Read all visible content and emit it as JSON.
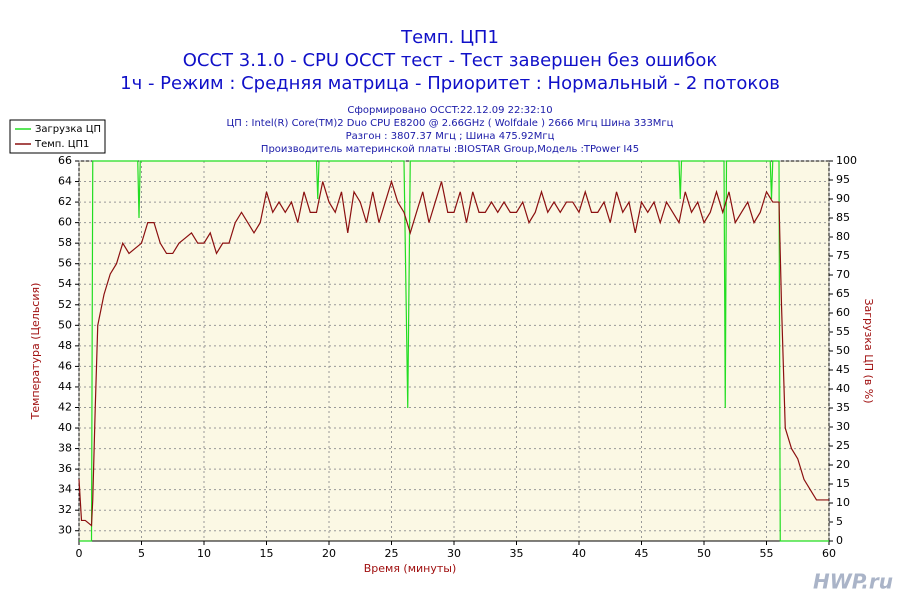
{
  "chart_data": {
    "type": "line",
    "title": [
      "Темп. ЦП1",
      "OCCT 3.1.0 - CPU OCCT тест - Тест завершен без ошибок",
      "1ч - Режим : Средняя матрица - Приоритет : Нормальный - 2 потоков"
    ],
    "subtitle": [
      "Сформировано OCCT:22.12.09 22:32:10",
      "ЦП : Intel(R) Core(TM)2 Duo CPU E8200 @ 2.66GHz ( Wolfdale ) 2666 Мгц Шина 333Мгц",
      "Разгон : 3807.37 Мгц ; Шина 475.92Мгц",
      "Производитель материнской платы :BIOSTAR Group,Модель :TPower I45"
    ],
    "x_label": "Время (минуты)",
    "y_label": "Температура (Цельсия)",
    "y2_label": "Загрузка ЦП (в %)",
    "watermark": "HWP.ru",
    "legend": "outside-top-left",
    "grid": true,
    "xlim": [
      0,
      60
    ],
    "xticks": [
      0,
      5,
      10,
      15,
      20,
      25,
      30,
      35,
      40,
      45,
      50,
      55,
      60
    ],
    "ylim": [
      29,
      66
    ],
    "yticks": [
      30,
      32,
      34,
      36,
      38,
      40,
      42,
      44,
      46,
      48,
      50,
      52,
      54,
      56,
      58,
      60,
      62,
      64,
      66
    ],
    "y2lim": [
      0,
      100
    ],
    "y2ticks": [
      0,
      5,
      10,
      15,
      20,
      25,
      30,
      35,
      40,
      45,
      50,
      55,
      60,
      65,
      70,
      75,
      80,
      85,
      90,
      95,
      100
    ],
    "series": [
      {
        "name": "Загрузка ЦП",
        "color": "#22dd22",
        "axis": "y2",
        "x": [
          0,
          1,
          1.1,
          4.7,
          4.8,
          4.9,
          19,
          19.1,
          19.2,
          26,
          26.3,
          26.5,
          48,
          48.1,
          48.2,
          51.6,
          51.7,
          51.8,
          55.3,
          55.4,
          55.5,
          56,
          56.1,
          60
        ],
        "values": [
          0,
          0,
          100,
          100,
          85,
          100,
          100,
          90,
          100,
          100,
          35,
          100,
          100,
          90,
          100,
          100,
          35,
          100,
          100,
          90,
          100,
          100,
          0,
          0
        ]
      },
      {
        "name": "Темп. ЦП1",
        "color": "#8b1010",
        "x": [
          0,
          0.2,
          0.5,
          1,
          1.1,
          1.3,
          1.5,
          2,
          2.5,
          3,
          3.5,
          4,
          4.5,
          5,
          5.5,
          6,
          6.5,
          7,
          7.5,
          8,
          8.5,
          9,
          9.5,
          10,
          10.5,
          11,
          11.5,
          12,
          12.5,
          13,
          13.5,
          14,
          14.5,
          15,
          15.5,
          16,
          16.5,
          17,
          17.5,
          18,
          18.5,
          19,
          19.5,
          20,
          20.5,
          21,
          21.5,
          22,
          22.5,
          23,
          23.5,
          24,
          24.5,
          25,
          25.5,
          26,
          26.5,
          27,
          27.5,
          28,
          28.5,
          29,
          29.5,
          30,
          30.5,
          31,
          31.5,
          32,
          32.5,
          33,
          33.5,
          34,
          34.5,
          35,
          35.5,
          36,
          36.5,
          37,
          37.5,
          38,
          38.5,
          39,
          39.5,
          40,
          40.5,
          41,
          41.5,
          42,
          42.5,
          43,
          43.5,
          44,
          44.5,
          45,
          45.5,
          46,
          46.5,
          47,
          47.5,
          48,
          48.5,
          49,
          49.5,
          50,
          50.5,
          51,
          51.5,
          52,
          52.5,
          53,
          53.5,
          54,
          54.5,
          55,
          55.5,
          56,
          56.2,
          56.5,
          57,
          57.5,
          58,
          58.5,
          59,
          59.5,
          60
        ],
        "values": [
          35,
          31,
          31,
          30.5,
          33,
          42,
          50,
          53,
          55,
          56,
          58,
          57,
          57.5,
          58,
          60,
          60,
          58,
          57,
          57,
          58,
          58.5,
          59,
          58,
          58,
          59,
          57,
          58,
          58,
          60,
          61,
          60,
          59,
          60,
          63,
          61,
          62,
          61,
          62,
          60,
          63,
          61,
          61,
          64,
          62,
          61,
          63,
          59,
          63,
          62,
          60,
          63,
          60,
          62,
          64,
          62,
          61,
          59,
          61,
          63,
          60,
          62,
          64,
          61,
          61,
          63,
          60,
          63,
          61,
          61,
          62,
          61,
          62,
          61,
          61,
          62,
          60,
          61,
          63,
          61,
          62,
          61,
          62,
          62,
          61,
          63,
          61,
          61,
          62,
          60,
          63,
          61,
          62,
          59,
          62,
          61,
          62,
          60,
          62,
          61,
          60,
          63,
          61,
          62,
          60,
          61,
          63,
          61,
          63,
          60,
          61,
          62,
          60,
          61,
          63,
          62,
          62,
          52,
          40,
          38,
          37,
          35,
          34,
          33,
          33,
          33
        ]
      }
    ]
  }
}
